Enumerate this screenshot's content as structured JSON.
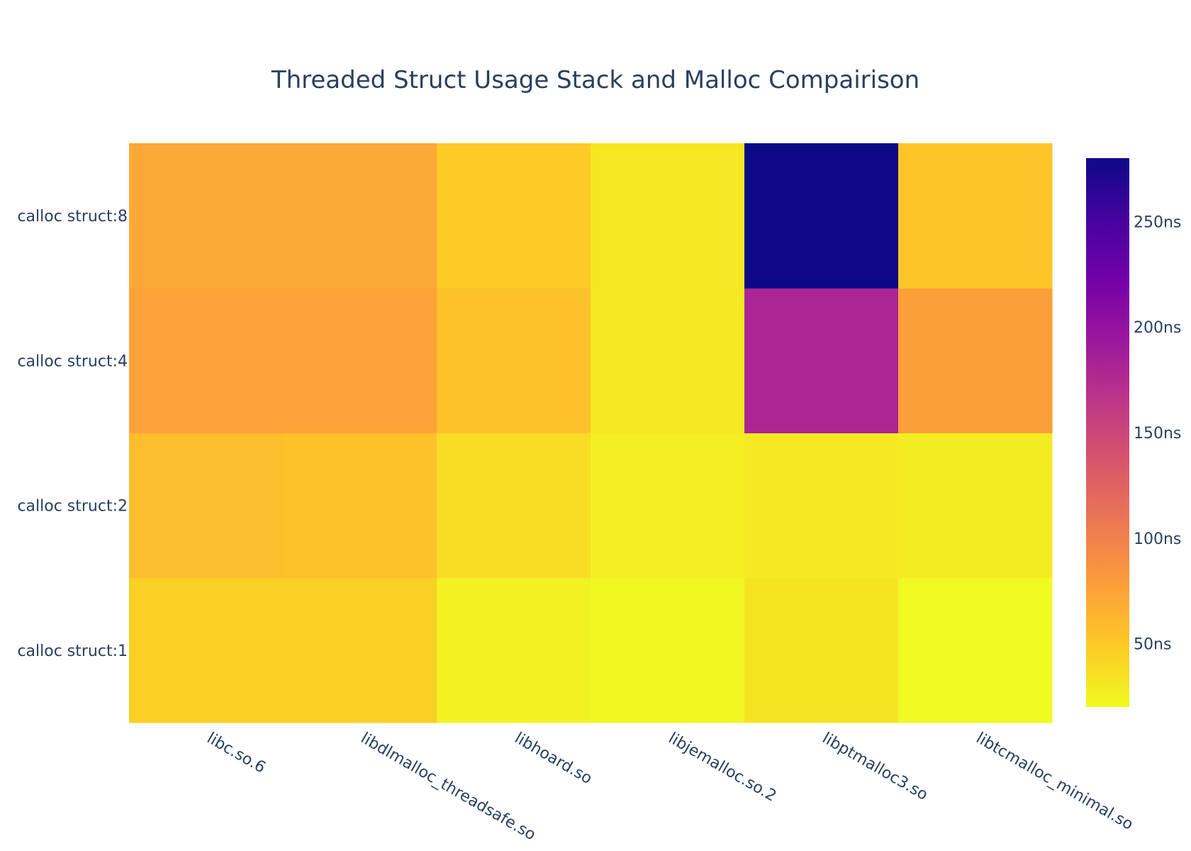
{
  "chart_data": {
    "type": "heatmap",
    "title": "Threaded Struct Usage Stack and Malloc Compairison",
    "x": [
      "libc.so.6",
      "libdlmalloc_threadsafe.so",
      "libhoard.so",
      "libjemalloc.so.2",
      "libptmalloc3.so",
      "libtcmalloc_minimal.so"
    ],
    "y": [
      "calloc struct:1",
      "calloc struct:2",
      "calloc struct:4",
      "calloc struct:8"
    ],
    "z": [
      [
        45,
        45,
        24,
        21,
        33,
        20
      ],
      [
        57,
        55,
        37,
        26,
        30,
        28
      ],
      [
        75,
        75,
        54,
        30,
        180,
        78
      ],
      [
        72,
        72,
        49,
        31,
        280,
        52
      ]
    ],
    "colorscale": "Plasma (reversed)",
    "zrange": [
      20,
      280
    ],
    "colorbar": {
      "ticks": [
        50,
        100,
        150,
        200,
        250
      ],
      "ticklabels": [
        "50ns",
        "100ns",
        "150ns",
        "200ns",
        "250ns"
      ]
    },
    "xlabel": "",
    "ylabel": ""
  }
}
